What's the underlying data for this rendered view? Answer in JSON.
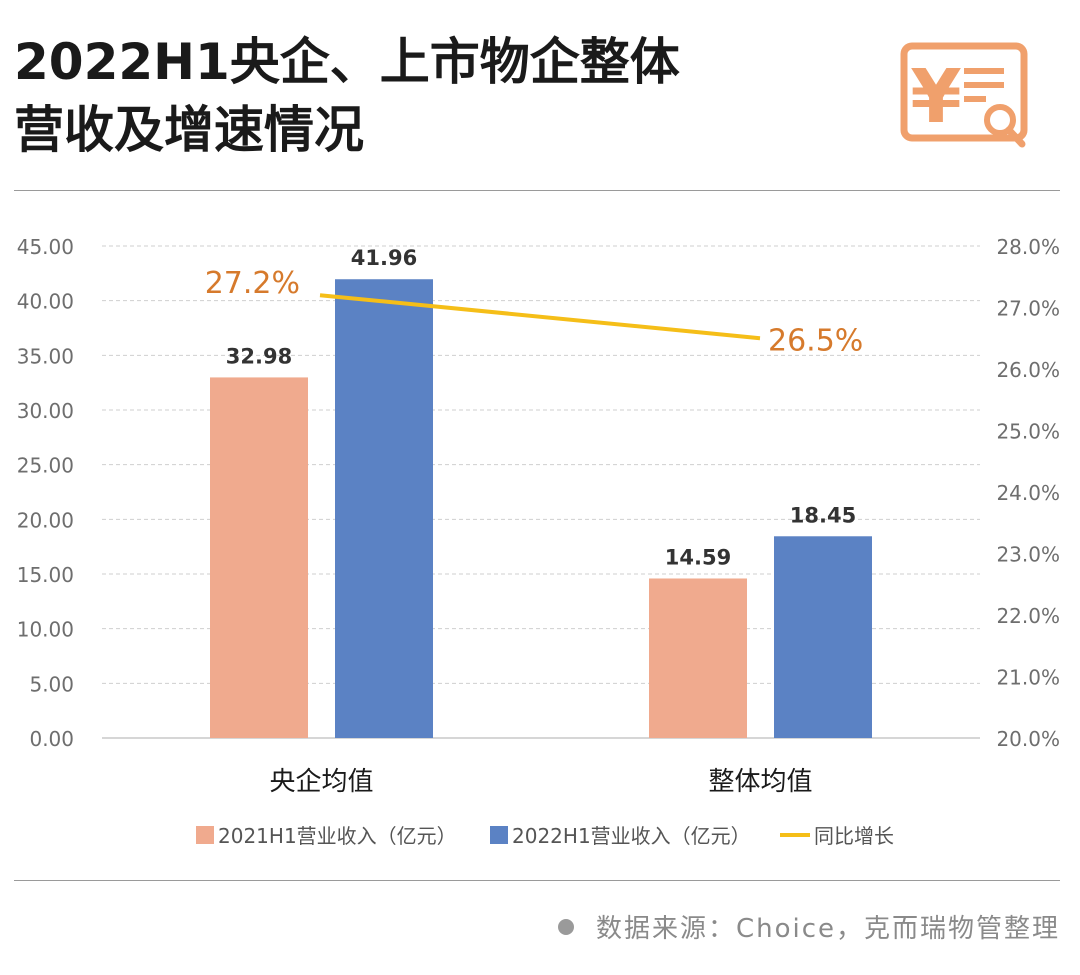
{
  "header": {
    "title_line1": "2022H1央企、上市物企整体",
    "title_line2": "营收及增速情况",
    "icon": "yuan-receipt-search-icon",
    "accent_color": "#F0A06C"
  },
  "footer": {
    "source_text": "数据来源：Choice，克而瑞物管整理"
  },
  "chart_data": {
    "type": "bar",
    "categories": [
      "央企均值",
      "整体均值"
    ],
    "series": [
      {
        "name": "2021H1营业收入（亿元）",
        "type": "bar",
        "axis": "left",
        "values": [
          32.98,
          14.59
        ],
        "labels": [
          "32.98",
          "14.59"
        ],
        "color": "#F0AA8E"
      },
      {
        "name": "2022H1营业收入（亿元）",
        "type": "bar",
        "axis": "left",
        "values": [
          41.96,
          18.45
        ],
        "labels": [
          "41.96",
          "18.45"
        ],
        "color": "#5B82C4"
      },
      {
        "name": "同比增长",
        "type": "line",
        "axis": "right",
        "values": [
          27.2,
          26.5
        ],
        "labels": [
          "27.2%",
          "26.5%"
        ],
        "color": "#F5BE18",
        "label_color": "#D67A2C"
      }
    ],
    "left_axis": {
      "ylim": [
        0,
        45
      ],
      "ticks": [
        "0.00",
        "5.00",
        "10.00",
        "15.00",
        "20.00",
        "25.00",
        "30.00",
        "35.00",
        "40.00",
        "45.00"
      ]
    },
    "right_axis": {
      "ylim": [
        20,
        28
      ],
      "ticks": [
        "20.0%",
        "21.0%",
        "22.0%",
        "23.0%",
        "24.0%",
        "25.0%",
        "26.0%",
        "27.0%",
        "28.0%"
      ]
    },
    "grid": true,
    "grid_style": "dashed",
    "legend_position": "bottom",
    "xlabel": "",
    "ylabel": ""
  }
}
